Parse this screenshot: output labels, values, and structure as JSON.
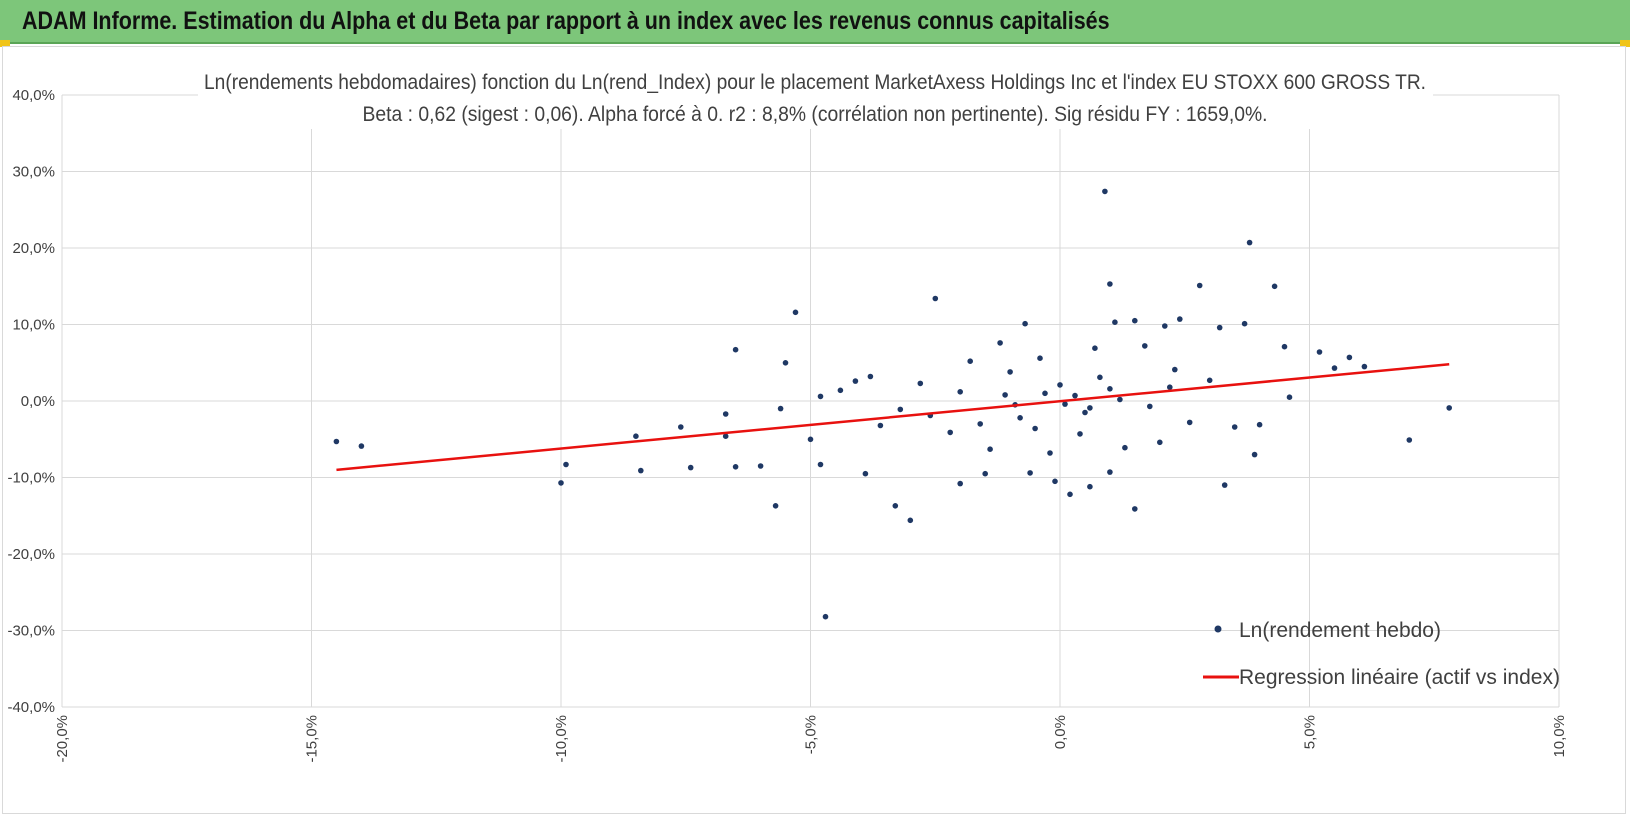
{
  "header": {
    "title": "ADAM Informe. Estimation du Alpha et du Beta par rapport à un index avec les revenus connus capitalisés",
    "accent_color": "#7dc67a"
  },
  "chart_data": {
    "type": "scatter",
    "title_line1": "Ln(rendements hebdomadaires) fonction du Ln(rend_Index) pour le placement MarketAxess Holdings Inc et l'index EU STOXX 600 GROSS TR.",
    "title_line2": "Beta : 0,62 (sigest : 0,06). Alpha forcé à 0. r2 : 8,8% (corrélation non pertinente). Sig résidu FY : 1659,0%.",
    "xlim": [
      -20,
      10
    ],
    "ylim": [
      -40,
      40
    ],
    "x_ticks": [
      -20,
      -15,
      -10,
      -5,
      0,
      5,
      10
    ],
    "y_ticks": [
      40,
      30,
      20,
      10,
      0,
      -10,
      -20,
      -30,
      -40
    ],
    "x_tick_labels": [
      "-20,0%",
      "-15,0%",
      "-10,0%",
      "-5,0%",
      "0,0%",
      "5,0%",
      "10,0%"
    ],
    "y_tick_labels": [
      "40,0%",
      "30,0%",
      "20,0%",
      "10,0%",
      "0,0%",
      "-10,0%",
      "-20,0%",
      "-30,0%",
      "-40,0%"
    ],
    "grid": true,
    "legend_position": "bottom-right",
    "series": [
      {
        "name": "Ln(rendement hebdo)",
        "kind": "scatter",
        "color": "#1f3864",
        "points": [
          [
            -14.5,
            -5.3
          ],
          [
            -14.0,
            -5.9
          ],
          [
            -10.0,
            -10.7
          ],
          [
            -9.9,
            -8.3
          ],
          [
            -8.5,
            -4.6
          ],
          [
            -8.4,
            -9.1
          ],
          [
            -7.6,
            -3.4
          ],
          [
            -7.4,
            -8.7
          ],
          [
            -6.7,
            -1.7
          ],
          [
            -6.7,
            -4.6
          ],
          [
            -6.5,
            6.7
          ],
          [
            -6.5,
            -8.6
          ],
          [
            -6.0,
            -8.5
          ],
          [
            -5.7,
            -13.7
          ],
          [
            -5.6,
            -1.0
          ],
          [
            -5.5,
            5.0
          ],
          [
            -5.3,
            11.6
          ],
          [
            -5.0,
            -5.0
          ],
          [
            -4.8,
            0.6
          ],
          [
            -4.8,
            -8.3
          ],
          [
            -4.7,
            -28.2
          ],
          [
            -4.4,
            1.4
          ],
          [
            -4.1,
            2.6
          ],
          [
            -3.9,
            -9.5
          ],
          [
            -3.8,
            3.2
          ],
          [
            -3.3,
            -13.7
          ],
          [
            -3.0,
            -15.6
          ],
          [
            -2.5,
            13.4
          ],
          [
            -2.0,
            -10.8
          ],
          [
            -1.5,
            -9.5
          ],
          [
            -1.2,
            7.6
          ],
          [
            -0.7,
            10.1
          ],
          [
            -0.6,
            -9.4
          ],
          [
            -0.1,
            -10.5
          ],
          [
            0.2,
            -12.2
          ],
          [
            0.6,
            -11.2
          ],
          [
            0.9,
            27.4
          ],
          [
            1.0,
            15.3
          ],
          [
            1.0,
            -9.3
          ],
          [
            1.1,
            10.3
          ],
          [
            1.5,
            -14.1
          ],
          [
            1.5,
            10.5
          ],
          [
            2.1,
            9.8
          ],
          [
            2.4,
            10.7
          ],
          [
            2.8,
            15.1
          ],
          [
            3.2,
            9.6
          ],
          [
            3.3,
            -11.0
          ],
          [
            3.5,
            -3.4
          ],
          [
            3.7,
            10.1
          ],
          [
            3.8,
            20.7
          ],
          [
            3.9,
            -7.0
          ],
          [
            4.3,
            15.0
          ],
          [
            4.0,
            -3.1
          ],
          [
            4.5,
            7.1
          ],
          [
            4.6,
            0.5
          ],
          [
            5.2,
            6.4
          ],
          [
            5.5,
            4.3
          ],
          [
            5.8,
            5.7
          ],
          [
            6.1,
            4.5
          ],
          [
            7.0,
            -5.1
          ],
          [
            7.8,
            -0.9
          ],
          [
            -3.6,
            -3.2
          ],
          [
            -3.2,
            -1.1
          ],
          [
            -2.8,
            2.3
          ],
          [
            -2.2,
            -4.1
          ],
          [
            -1.8,
            5.2
          ],
          [
            -1.4,
            -6.3
          ],
          [
            -1.0,
            3.8
          ],
          [
            -0.8,
            -2.2
          ],
          [
            -0.4,
            5.6
          ],
          [
            -0.2,
            -6.8
          ],
          [
            0.4,
            -4.3
          ],
          [
            0.7,
            6.9
          ],
          [
            1.3,
            -6.1
          ],
          [
            1.7,
            7.2
          ],
          [
            2.0,
            -5.4
          ],
          [
            2.3,
            4.1
          ],
          [
            2.6,
            -2.8
          ],
          [
            3.0,
            2.7
          ],
          [
            -2.6,
            -1.9
          ],
          [
            -2.0,
            1.2
          ],
          [
            -1.6,
            -3.0
          ],
          [
            -1.1,
            0.8
          ],
          [
            -0.5,
            -3.6
          ],
          [
            0.0,
            2.1
          ],
          [
            0.5,
            -1.5
          ],
          [
            0.8,
            3.1
          ],
          [
            1.2,
            0.2
          ],
          [
            1.8,
            -0.7
          ],
          [
            2.2,
            1.8
          ],
          [
            -0.3,
            1.0
          ],
          [
            0.1,
            -0.4
          ],
          [
            0.3,
            0.7
          ],
          [
            0.6,
            -0.9
          ],
          [
            -0.9,
            -0.5
          ],
          [
            1.0,
            1.6
          ]
        ]
      },
      {
        "name": "Regression linéaire (actif vs index)",
        "kind": "line",
        "color": "#e8110f",
        "x": [
          -14.5,
          7.8
        ],
        "y": [
          -9.0,
          4.8
        ]
      }
    ]
  }
}
